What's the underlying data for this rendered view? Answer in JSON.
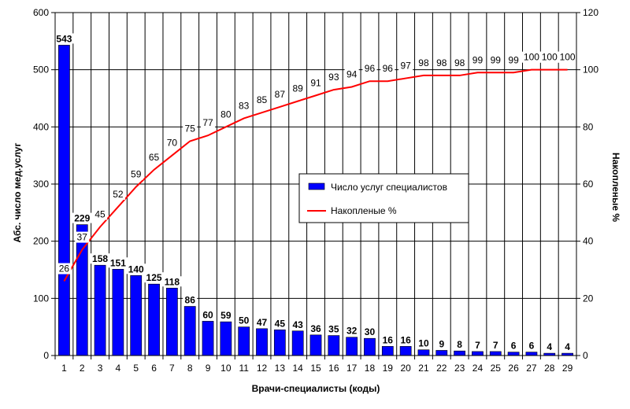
{
  "chart_data": {
    "type": "bar",
    "title": "",
    "xlabel": "Врачи-специалисты (коды)",
    "ylabel": "Абс. число мед.услуг",
    "y2label": "Накопленые %",
    "categories": [
      "1",
      "2",
      "3",
      "4",
      "5",
      "6",
      "7",
      "8",
      "9",
      "10",
      "11",
      "12",
      "13",
      "14",
      "15",
      "16",
      "17",
      "18",
      "19",
      "20",
      "21",
      "22",
      "23",
      "24",
      "25",
      "26",
      "27",
      "28",
      "29"
    ],
    "ylim": [
      0,
      600
    ],
    "yticks": [
      "0",
      "100",
      "200",
      "300",
      "400",
      "500",
      "600"
    ],
    "y2lim": [
      0,
      120
    ],
    "y2ticks": [
      "0",
      "20",
      "40",
      "60",
      "80",
      "100",
      "120"
    ],
    "grid": true,
    "legend_position": "center-right",
    "series": [
      {
        "name": "Число услуг специалистов",
        "kind": "bar",
        "color": "#0000FF",
        "axis": "left",
        "values": [
          543,
          229,
          158,
          151,
          140,
          125,
          118,
          86,
          60,
          59,
          50,
          47,
          45,
          43,
          36,
          35,
          32,
          30,
          16,
          16,
          10,
          9,
          8,
          7,
          7,
          6,
          6,
          4,
          4
        ]
      },
      {
        "name": "Накопленые %",
        "kind": "line",
        "color": "#FF0000",
        "axis": "right",
        "values": [
          26,
          37,
          45,
          52,
          59,
          65,
          70,
          75,
          77,
          80,
          83,
          85,
          87,
          89,
          91,
          93,
          94,
          96,
          96,
          97,
          98,
          98,
          98,
          99,
          99,
          99,
          100,
          100,
          100
        ]
      }
    ]
  }
}
